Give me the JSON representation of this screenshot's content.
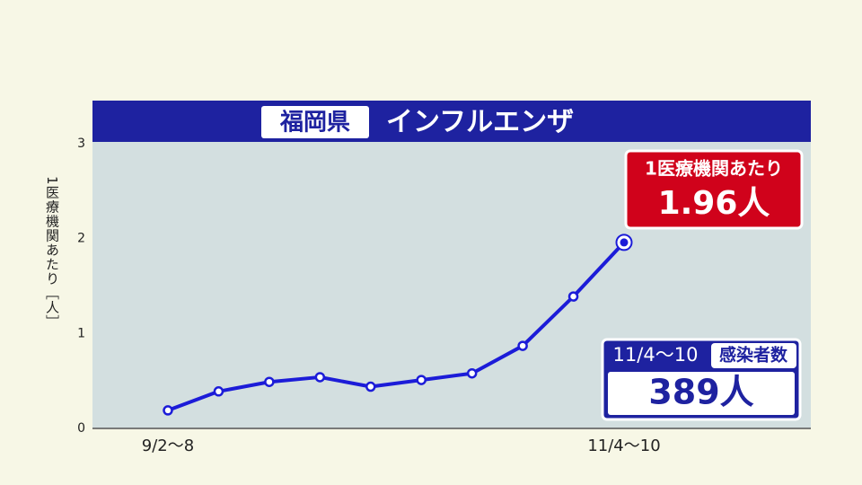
{
  "chart_data": {
    "type": "line",
    "title": "インフルエンザ",
    "region": "福岡県",
    "y_label": "1医療機関あたり［人］",
    "categories": [
      "9/2〜8",
      null,
      null,
      null,
      null,
      null,
      null,
      null,
      null,
      "11/4〜10"
    ],
    "series": [
      {
        "name": "1医療機関あたり",
        "color": "#1c1cd8",
        "values": [
          0.19,
          0.39,
          0.49,
          0.54,
          0.44,
          0.51,
          0.58,
          0.87,
          1.39,
          1.96
        ],
        "value_labels": [
          null,
          null,
          null,
          null,
          null,
          null,
          null,
          null,
          null,
          "1.96人"
        ]
      }
    ],
    "ylim": [
      0,
      3
    ],
    "yticks": [
      0,
      1,
      2,
      3
    ],
    "grid": false,
    "annotation": {
      "period": "11/4〜10",
      "label": "感染者数",
      "count": "389人"
    }
  }
}
